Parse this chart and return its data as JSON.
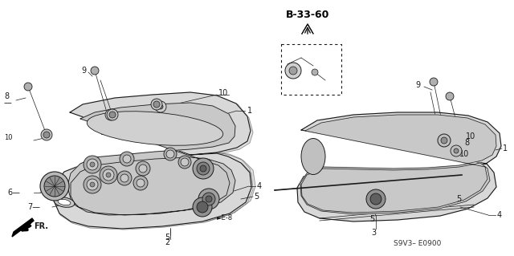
{
  "bg_color": "#ffffff",
  "ref_code": "B-33-60",
  "part_code": "S9V3– E0900",
  "line_color": "#1a1a1a",
  "label_fs": 7,
  "ref_fs": 9,
  "code_fs": 6.5
}
